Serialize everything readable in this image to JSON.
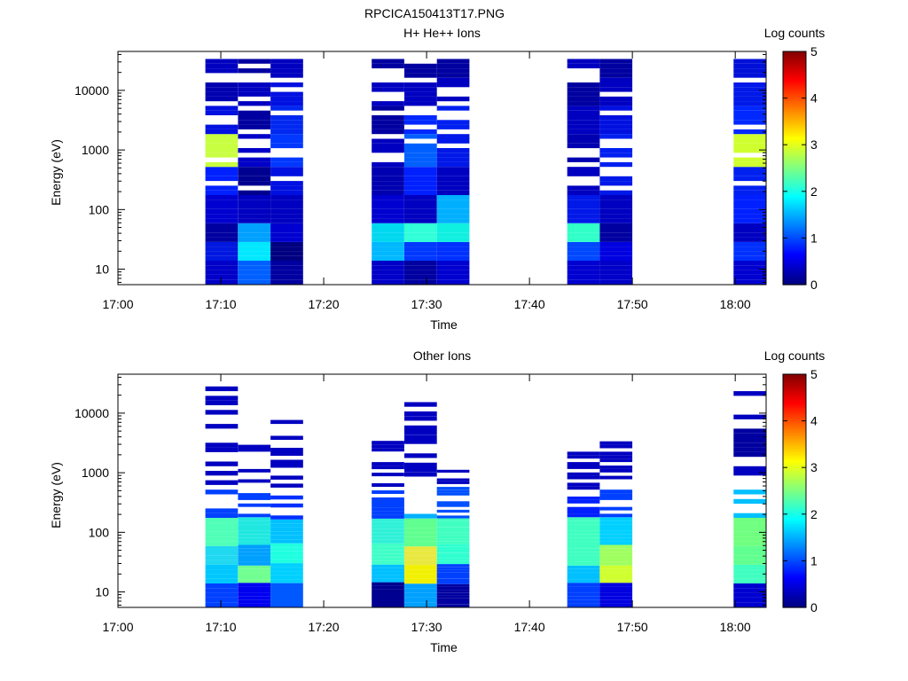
{
  "figure_title": "RPCICA150413T17.PNG",
  "chart_data": [
    {
      "type": "heatmap",
      "title": "H+ He++ Ions",
      "xlabel": "Time",
      "ylabel": "Energy (eV)",
      "x_ticks": [
        "17:00",
        "17:10",
        "17:20",
        "17:30",
        "17:40",
        "17:50",
        "18:00"
      ],
      "y_ticks": [
        "10",
        "100",
        "1000",
        "10000"
      ],
      "y_scale": "log",
      "ylim": [
        5.5,
        45000
      ],
      "xlim": [
        "17:00",
        "18:03"
      ],
      "colorbar": {
        "label": "Log counts",
        "ticks": [
          "0",
          "1",
          "2",
          "3",
          "4",
          "5"
        ],
        "range": [
          0,
          5
        ]
      },
      "color_column_data": [
        {
          "start": "17:08:30",
          "end": "17:11:40",
          "energy_color_samples": [
            [
              10,
              "#0000c8"
            ],
            [
              20,
              "#0018e0"
            ],
            [
              40,
              "#0000a0"
            ],
            [
              100,
              "#0000d0"
            ],
            [
              300,
              "#0020ff"
            ],
            [
              1000,
              "#c8ff40"
            ],
            [
              3000,
              "#0010e0"
            ],
            [
              10000,
              "#0000b0"
            ],
            [
              30000,
              "#0000c0"
            ]
          ]
        },
        {
          "start": "17:11:40",
          "end": "17:14:50",
          "energy_color_samples": [
            [
              10,
              "#0060ff"
            ],
            [
              20,
              "#00e8ff"
            ],
            [
              40,
              "#00a0ff"
            ],
            [
              100,
              "#0000c0"
            ],
            [
              300,
              "#000090"
            ],
            [
              1000,
              "#0000c8"
            ],
            [
              3000,
              "#0000a0"
            ],
            [
              10000,
              "#0000c0"
            ],
            [
              30000,
              "#0000a0"
            ]
          ]
        },
        {
          "start": "17:14:50",
          "end": "17:18:00",
          "energy_color_samples": [
            [
              10,
              "#0000a0"
            ],
            [
              20,
              "#000080"
            ],
            [
              40,
              "#0000d0"
            ],
            [
              100,
              "#0000c0"
            ],
            [
              300,
              "#0010e0"
            ],
            [
              1000,
              "#0038ff"
            ],
            [
              3000,
              "#0028f0"
            ],
            [
              10000,
              "#0010e0"
            ],
            [
              30000,
              "#0000c0"
            ]
          ]
        },
        {
          "start": "17:24:40",
          "end": "17:27:50",
          "energy_color_samples": [
            [
              10,
              "#0000c8"
            ],
            [
              20,
              "#00b8ff"
            ],
            [
              40,
              "#00d8f0"
            ],
            [
              100,
              "#0000d0"
            ],
            [
              300,
              "#0000b0"
            ],
            [
              1000,
              "#0000c0"
            ],
            [
              3000,
              "#0000a0"
            ],
            [
              10000,
              "#0000c0"
            ],
            [
              30000,
              "#0000a0"
            ]
          ]
        },
        {
          "start": "17:27:50",
          "end": "17:31:00",
          "energy_color_samples": [
            [
              10,
              "#0000a0"
            ],
            [
              20,
              "#0038ff"
            ],
            [
              40,
              "#30ffd8"
            ],
            [
              100,
              "#0000c0"
            ],
            [
              300,
              "#0020ff"
            ],
            [
              1000,
              "#0060ff"
            ],
            [
              3000,
              "#0028ff"
            ],
            [
              10000,
              "#0000c0"
            ],
            [
              30000,
              "#0000a0"
            ]
          ]
        },
        {
          "start": "17:31:00",
          "end": "17:34:10",
          "energy_color_samples": [
            [
              10,
              "#0000d0"
            ],
            [
              20,
              "#0030ff"
            ],
            [
              40,
              "#10f0e0"
            ],
            [
              100,
              "#00b0ff"
            ],
            [
              300,
              "#0000c0"
            ],
            [
              1000,
              "#0018e8"
            ],
            [
              3000,
              "#0020f0"
            ],
            [
              10000,
              "#0000c0"
            ],
            [
              30000,
              "#0000a0"
            ]
          ]
        },
        {
          "start": "17:43:40",
          "end": "17:46:50",
          "energy_color_samples": [
            [
              10,
              "#0000d0"
            ],
            [
              20,
              "#0048ff"
            ],
            [
              40,
              "#30ffc8"
            ],
            [
              100,
              "#0018e8"
            ],
            [
              300,
              "#0000c0"
            ],
            [
              1000,
              "#0000b0"
            ],
            [
              3000,
              "#0000c0"
            ],
            [
              10000,
              "#0000a0"
            ],
            [
              30000,
              "#0000c0"
            ]
          ]
        },
        {
          "start": "17:46:50",
          "end": "17:50:00",
          "energy_color_samples": [
            [
              10,
              "#0000c8"
            ],
            [
              20,
              "#0000e0"
            ],
            [
              40,
              "#0000a0"
            ],
            [
              100,
              "#0000c0"
            ],
            [
              300,
              "#0018e8"
            ],
            [
              1000,
              "#0020f0"
            ],
            [
              3000,
              "#0010e0"
            ],
            [
              10000,
              "#0000c0"
            ],
            [
              30000,
              "#0000a0"
            ]
          ]
        },
        {
          "start": "17:59:50",
          "end": "18:03:00",
          "energy_color_samples": [
            [
              10,
              "#0000d0"
            ],
            [
              20,
              "#0030ff"
            ],
            [
              40,
              "#0000c0"
            ],
            [
              100,
              "#0020ff"
            ],
            [
              300,
              "#0020f0"
            ],
            [
              1000,
              "#d0ff30"
            ],
            [
              3000,
              "#0028ff"
            ],
            [
              10000,
              "#0018e8"
            ],
            [
              30000,
              "#0010d8"
            ]
          ]
        }
      ]
    },
    {
      "type": "heatmap",
      "title": "Other Ions",
      "xlabel": "Time",
      "ylabel": "Energy (eV)",
      "x_ticks": [
        "17:00",
        "17:10",
        "17:20",
        "17:30",
        "17:40",
        "17:50",
        "18:00"
      ],
      "y_ticks": [
        "10",
        "100",
        "1000",
        "10000"
      ],
      "y_scale": "log",
      "ylim": [
        5.5,
        45000
      ],
      "xlim": [
        "17:00",
        "18:03"
      ],
      "colorbar": {
        "label": "Log counts",
        "ticks": [
          "0",
          "1",
          "2",
          "3",
          "4",
          "5"
        ],
        "range": [
          0,
          5
        ]
      },
      "color_column_data": [
        {
          "start": "17:08:30",
          "end": "17:11:40",
          "energy_color_samples": [
            [
              10,
              "#0040ff"
            ],
            [
              20,
              "#00c8ff"
            ],
            [
              40,
              "#20d8f0"
            ],
            [
              100,
              "#50ffb8"
            ],
            [
              300,
              "#0040ff"
            ],
            [
              1000,
              "#0000c0"
            ],
            [
              3000,
              "#0000c0"
            ],
            [
              10000,
              "#0000c0"
            ],
            [
              30000,
              "#0000c0"
            ]
          ]
        },
        {
          "start": "17:11:40",
          "end": "17:14:50",
          "energy_color_samples": [
            [
              10,
              "#0000f0"
            ],
            [
              20,
              "#70ff90"
            ],
            [
              40,
              "#00a0ff"
            ],
            [
              100,
              "#20e8e0"
            ],
            [
              300,
              "#0040ff"
            ],
            [
              1000,
              "#0000c0"
            ],
            [
              3000,
              "#0000c0"
            ]
          ]
        },
        {
          "start": "17:14:50",
          "end": "17:18:00",
          "energy_color_samples": [
            [
              10,
              "#0058ff"
            ],
            [
              20,
              "#00d0ff"
            ],
            [
              40,
              "#20ffe0"
            ],
            [
              100,
              "#00c0ff"
            ],
            [
              300,
              "#0030ff"
            ],
            [
              1000,
              "#0000c0"
            ],
            [
              3000,
              "#0000c0"
            ],
            [
              8000,
              "#0000c0"
            ]
          ]
        },
        {
          "start": "17:24:40",
          "end": "17:27:50",
          "energy_color_samples": [
            [
              10,
              "#000090"
            ],
            [
              20,
              "#00c0ff"
            ],
            [
              40,
              "#40ffc8"
            ],
            [
              100,
              "#30f0d8"
            ],
            [
              300,
              "#0040ff"
            ],
            [
              1000,
              "#0000c0"
            ],
            [
              3500,
              "#0000c0"
            ]
          ]
        },
        {
          "start": "17:27:50",
          "end": "17:31:00",
          "energy_color_samples": [
            [
              10,
              "#00a0ff"
            ],
            [
              20,
              "#f0f000"
            ],
            [
              40,
              "#e8e840"
            ],
            [
              100,
              "#60ff90"
            ],
            [
              300,
              "#00b0ff"
            ],
            [
              1000,
              "#0000c0"
            ],
            [
              3000,
              "#0000c0"
            ],
            [
              28000,
              "#0000c0"
            ]
          ]
        },
        {
          "start": "17:31:00",
          "end": "17:34:10",
          "energy_color_samples": [
            [
              10,
              "#0000a0"
            ],
            [
              20,
              "#0040ff"
            ],
            [
              40,
              "#30ffd0"
            ],
            [
              100,
              "#40ffc0"
            ],
            [
              300,
              "#0050ff"
            ],
            [
              1000,
              "#0000c0"
            ]
          ]
        },
        {
          "start": "17:43:40",
          "end": "17:46:50",
          "energy_color_samples": [
            [
              10,
              "#0040ff"
            ],
            [
              20,
              "#00c0ff"
            ],
            [
              40,
              "#40ffc0"
            ],
            [
              100,
              "#40ffc0"
            ],
            [
              300,
              "#0020ff"
            ],
            [
              1000,
              "#0000c0"
            ],
            [
              3000,
              "#0000c0"
            ]
          ]
        },
        {
          "start": "17:46:50",
          "end": "17:50:00",
          "energy_color_samples": [
            [
              10,
              "#0000e0"
            ],
            [
              20,
              "#d0ff30"
            ],
            [
              40,
              "#a0ff60"
            ],
            [
              100,
              "#00d0ff"
            ],
            [
              300,
              "#0040ff"
            ],
            [
              1000,
              "#0000c0"
            ],
            [
              3000,
              "#0000c0"
            ]
          ]
        },
        {
          "start": "17:59:50",
          "end": "18:03:00",
          "energy_color_samples": [
            [
              10,
              "#0000d0"
            ],
            [
              20,
              "#40ffc0"
            ],
            [
              40,
              "#60ff90"
            ],
            [
              100,
              "#70ff80"
            ],
            [
              300,
              "#00c0ff"
            ],
            [
              1000,
              "#0000c0"
            ],
            [
              3000,
              "#0000a0"
            ],
            [
              10000,
              "#0000c0"
            ],
            [
              30000,
              "#0000c0"
            ]
          ]
        }
      ]
    }
  ]
}
